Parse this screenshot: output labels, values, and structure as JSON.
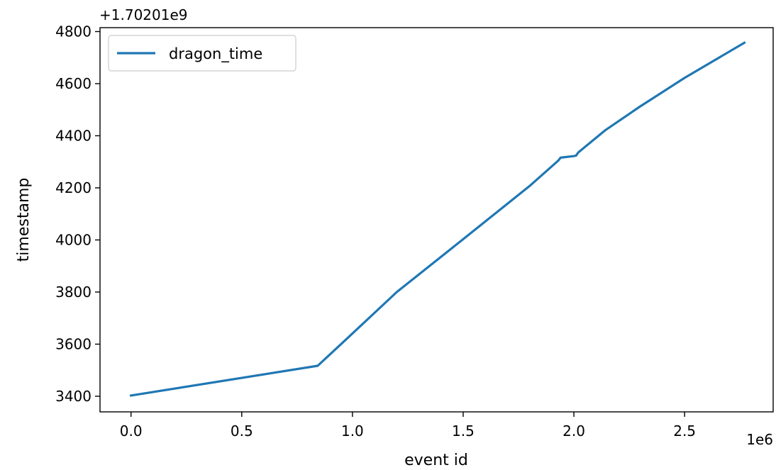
{
  "chart_data": {
    "type": "line",
    "title": "",
    "xlabel": "event id",
    "ylabel": "timestamp",
    "x_scale_label": "1e6",
    "y_offset_label": "+1.70201e9",
    "xlim": [
      -0.14,
      2.9
    ],
    "ylim": [
      3340,
      4815
    ],
    "xticks": [
      0.0,
      0.5,
      1.0,
      1.5,
      2.0,
      2.5
    ],
    "xtick_labels": [
      "0.0",
      "0.5",
      "1.0",
      "1.5",
      "2.0",
      "2.5"
    ],
    "yticks": [
      3400,
      3600,
      3800,
      4000,
      4200,
      4400,
      4600,
      4800
    ],
    "ytick_labels": [
      "3400",
      "3600",
      "3800",
      "4000",
      "4200",
      "4400",
      "4600",
      "4800"
    ],
    "grid": false,
    "legend_position": "upper-left",
    "series": [
      {
        "name": "dragon_time",
        "color": "#1f77b4",
        "x": [
          0.0,
          0.843,
          0.98,
          1.2,
          1.5,
          1.8,
          1.93,
          1.94,
          2.0,
          2.01,
          2.02,
          2.14,
          2.3,
          2.5,
          2.77
        ],
        "y": [
          3403,
          3517,
          3625,
          3800,
          4003,
          4207,
          4305,
          4316,
          4322,
          4324,
          4336,
          4420,
          4513,
          4622,
          4757
        ]
      }
    ]
  }
}
